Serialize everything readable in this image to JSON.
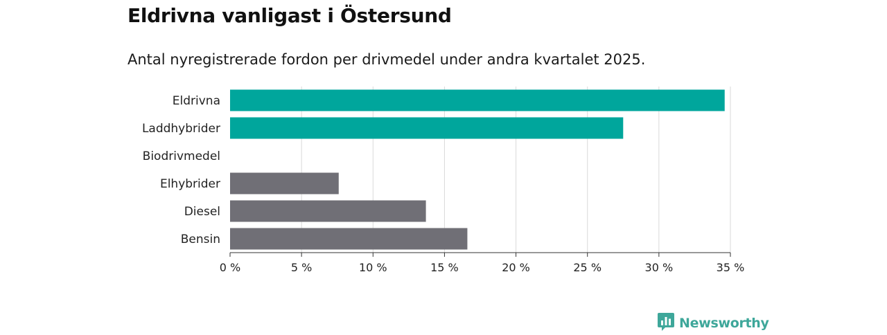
{
  "header": {
    "title": "Eldrivna vanligast i Östersund",
    "subtitle": "Antal nyregistrerade fordon per drivmedel under andra kvartalet 2025."
  },
  "brand": {
    "name": "Newsworthy",
    "icon": "newsworthy-logo-icon",
    "color": "#3ea79a"
  },
  "chart_data": {
    "type": "bar",
    "orientation": "horizontal",
    "title": "Eldrivna vanligast i Östersund",
    "subtitle": "Antal nyregistrerade fordon per drivmedel under andra kvartalet 2025.",
    "categories": [
      "Eldrivna",
      "Laddhybrider",
      "Biodrivmedel",
      "Elhybrider",
      "Diesel",
      "Bensin"
    ],
    "values": [
      34.6,
      27.5,
      0,
      7.6,
      13.7,
      16.6
    ],
    "colors": [
      "#00a69c",
      "#00a69c",
      "#00a69c",
      "#706f76",
      "#706f76",
      "#706f76"
    ],
    "xlim": [
      0,
      35
    ],
    "xticks": [
      0,
      5,
      10,
      15,
      20,
      25,
      30,
      35
    ],
    "tick_labels": [
      "0 %",
      "5 %",
      "10 %",
      "15 %",
      "20 %",
      "25 %",
      "30 %",
      "35 %"
    ],
    "xlabel": "",
    "ylabel": "",
    "grid": true
  }
}
